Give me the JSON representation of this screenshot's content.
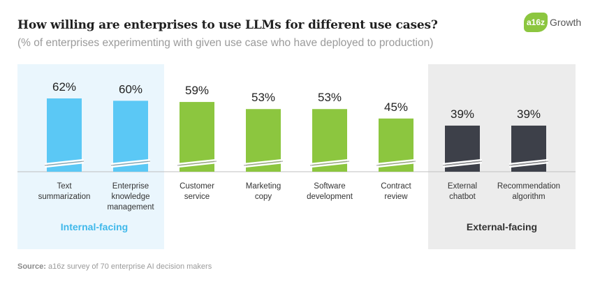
{
  "title": "How willing are enterprises to use LLMs for different use cases?",
  "subtitle": "(% of enterprises experimenting with given use case who have deployed to production)",
  "logo": {
    "badge": "a16z",
    "text": "Growth"
  },
  "source": {
    "label": "Source:",
    "text": "a16z survey of 70 enterprise AI decision makers"
  },
  "colors": {
    "internal_bar": "#5bc8f5",
    "internal_panel": "#eaf6fd",
    "internal_label": "#3fb8ea",
    "middle_bar": "#8cc63f",
    "external_bar": "#3d4049",
    "external_panel": "#ececec",
    "baseline": "#bfbfbf"
  },
  "chart_data": {
    "type": "bar",
    "categories": [
      "Text summarization",
      "Enterprise knowledge management",
      "Customer service",
      "Marketing copy",
      "Software development",
      "Contract review",
      "External chatbot",
      "Recommendation algorithm"
    ],
    "category_lines": [
      [
        "Text",
        "summarization"
      ],
      [
        "Enterprise",
        "knowledge",
        "management"
      ],
      [
        "Customer",
        "service"
      ],
      [
        "Marketing",
        "copy"
      ],
      [
        "Software",
        "development"
      ],
      [
        "Contract",
        "review"
      ],
      [
        "External",
        "chatbot"
      ],
      [
        "Recommendation",
        "algorithm"
      ]
    ],
    "values": [
      62,
      60,
      59,
      53,
      53,
      45,
      39,
      39
    ],
    "value_labels": [
      "62%",
      "60%",
      "59%",
      "53%",
      "53%",
      "45%",
      "39%",
      "39%"
    ],
    "groups": [
      {
        "name": "Internal-facing",
        "indices": [
          0,
          1
        ]
      },
      {
        "name": "",
        "indices": [
          2,
          3,
          4,
          5
        ]
      },
      {
        "name": "External-facing",
        "indices": [
          6,
          7
        ]
      }
    ],
    "axis_break": true,
    "grid": false
  }
}
